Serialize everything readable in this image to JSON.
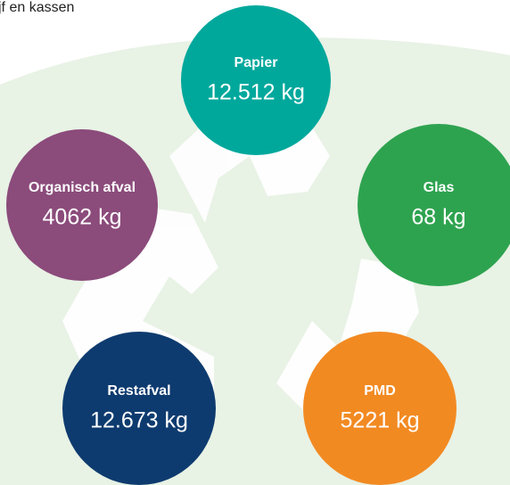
{
  "header": {
    "text": "jf en kassen"
  },
  "nodes": [
    {
      "label": "Papier",
      "value": "12.512 kg",
      "color": "#00a89c"
    },
    {
      "label": "Glas",
      "value": "68 kg",
      "color": "#2ea34f"
    },
    {
      "label": "Organisch afval",
      "value": "4062 kg",
      "color": "#8b4b7b"
    },
    {
      "label": "Restafval",
      "value": "12.673 kg",
      "color": "#0e3b6f"
    },
    {
      "label": "PMD",
      "value": "5221 kg",
      "color": "#f28a22"
    }
  ]
}
